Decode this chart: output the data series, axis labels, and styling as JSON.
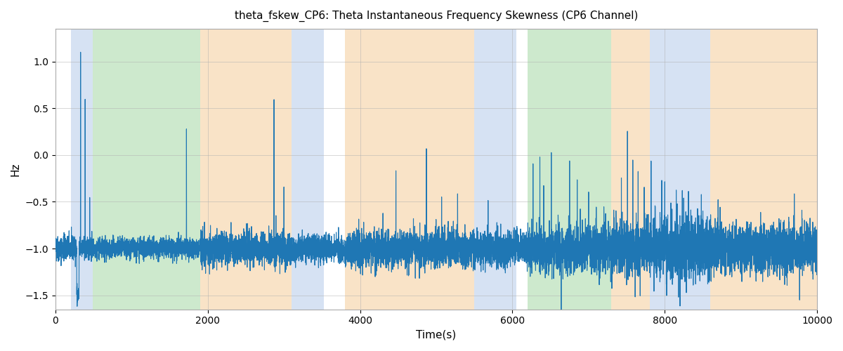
{
  "title": "theta_fskew_CP6: Theta Instantaneous Frequency Skewness (CP6 Channel)",
  "xlabel": "Time(s)",
  "ylabel": "Hz",
  "xlim": [
    0,
    10000
  ],
  "ylim": [
    -1.65,
    1.35
  ],
  "line_color": "#1f77b4",
  "line_width": 0.8,
  "background_color": "#ffffff",
  "grid_color": "#b0b0b0",
  "regions": [
    {
      "xmin": 200,
      "xmax": 490,
      "color": "#aec6e8",
      "alpha": 0.5
    },
    {
      "xmin": 490,
      "xmax": 1900,
      "color": "#90d090",
      "alpha": 0.45
    },
    {
      "xmin": 1900,
      "xmax": 3100,
      "color": "#f5c990",
      "alpha": 0.5
    },
    {
      "xmin": 3100,
      "xmax": 3520,
      "color": "#aec6e8",
      "alpha": 0.5
    },
    {
      "xmin": 3800,
      "xmax": 5500,
      "color": "#f5c990",
      "alpha": 0.5
    },
    {
      "xmin": 5500,
      "xmax": 6050,
      "color": "#aec6e8",
      "alpha": 0.5
    },
    {
      "xmin": 6200,
      "xmax": 7300,
      "color": "#90d090",
      "alpha": 0.45
    },
    {
      "xmin": 7300,
      "xmax": 7800,
      "color": "#f5c990",
      "alpha": 0.5
    },
    {
      "xmin": 7800,
      "xmax": 8600,
      "color": "#aec6e8",
      "alpha": 0.5
    },
    {
      "xmin": 8600,
      "xmax": 10000,
      "color": "#f5c990",
      "alpha": 0.5
    }
  ],
  "yticks": [
    -1.5,
    -1.0,
    -0.5,
    0.0,
    0.5,
    1.0
  ],
  "xticks": [
    0,
    2000,
    4000,
    6000,
    8000,
    10000
  ],
  "figsize": [
    12,
    5
  ],
  "dpi": 100
}
